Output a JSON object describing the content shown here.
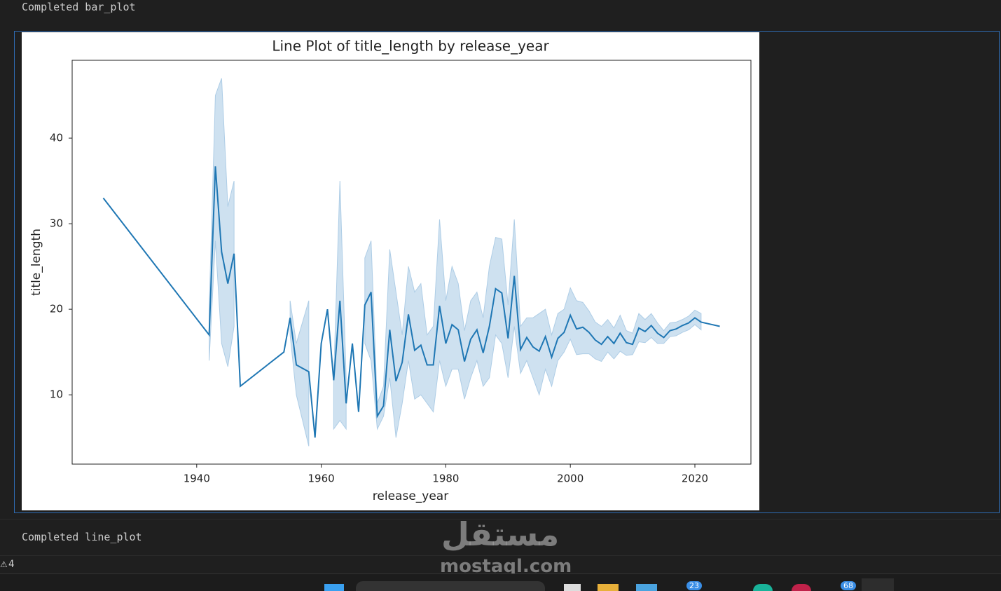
{
  "outputs": {
    "before": "Completed bar_plot",
    "after": "Completed line_plot"
  },
  "status": {
    "warnings": "4"
  },
  "watermark": {
    "arabic": "مستقل",
    "latin": "mostaql.com"
  },
  "taskbar": {
    "badges": [
      "23",
      "68"
    ]
  },
  "chart_data": {
    "type": "line",
    "title": "Line Plot of title_length by release_year",
    "x_label": "release_year",
    "y_label": "title_length",
    "x": [
      1925,
      1942,
      1943,
      1944,
      1945,
      1946,
      1947,
      1954,
      1955,
      1956,
      1958,
      1959,
      1960,
      1961,
      1962,
      1963,
      1964,
      1965,
      1966,
      1967,
      1968,
      1969,
      1970,
      1971,
      1972,
      1973,
      1974,
      1975,
      1976,
      1977,
      1978,
      1979,
      1980,
      1981,
      1982,
      1983,
      1984,
      1985,
      1986,
      1987,
      1988,
      1989,
      1990,
      1991,
      1992,
      1993,
      1994,
      1995,
      1996,
      1997,
      1998,
      1999,
      2000,
      2001,
      2002,
      2003,
      2004,
      2005,
      2006,
      2007,
      2008,
      2009,
      2010,
      2011,
      2012,
      2013,
      2014,
      2015,
      2016,
      2017,
      2018,
      2019,
      2020,
      2021,
      2024
    ],
    "values": [
      33,
      17,
      36.7,
      26.7,
      23,
      26.5,
      11,
      15,
      19,
      13.5,
      12.7,
      5,
      16,
      20,
      11.7,
      21,
      9,
      16,
      8,
      20.5,
      22,
      7.5,
      8.7,
      17.6,
      11.6,
      13.8,
      19.4,
      15.2,
      15.8,
      13.5,
      13.5,
      20.4,
      16,
      18.2,
      17.6,
      13.9,
      16.5,
      17.6,
      14.9,
      18,
      22.4,
      21.9,
      16.6,
      23.9,
      15.3,
      16.7,
      15.6,
      15.1,
      16.8,
      14.4,
      16.6,
      17.3,
      19.3,
      17.7,
      17.9,
      17.3,
      16.4,
      15.9,
      16.8,
      16,
      17.2,
      16.1,
      15.9,
      17.8,
      17.4,
      18.1,
      17.2,
      16.7,
      17.5,
      17.7,
      18.1,
      18.4,
      19,
      18.5,
      18
    ],
    "color": "#1f77b4",
    "band": {
      "lower": [
        null,
        14,
        28,
        16,
        13.3,
        18,
        null,
        null,
        17,
        10,
        4,
        null,
        null,
        null,
        6,
        7,
        6,
        null,
        null,
        16,
        14,
        6,
        7.5,
        12,
        5,
        9,
        14,
        9.5,
        10,
        9,
        8,
        14,
        11,
        13,
        13,
        9.5,
        12,
        14,
        11,
        12,
        17,
        16,
        12,
        18,
        12.5,
        14,
        12,
        10,
        13,
        11,
        14,
        15,
        16.5,
        14.7,
        14.8,
        14.8,
        14.2,
        13.9,
        15,
        14.2,
        15.1,
        14.6,
        14.7,
        16.2,
        16.1,
        16.7,
        16,
        16,
        16.8,
        16.9,
        17.3,
        17.6,
        18.2,
        17.6,
        null
      ],
      "upper": [
        null,
        20,
        45,
        47,
        32,
        35,
        null,
        null,
        21,
        16,
        21,
        null,
        null,
        null,
        12,
        35,
        12,
        null,
        null,
        26,
        28,
        9,
        11,
        27,
        22,
        17,
        25,
        22,
        23,
        17,
        18,
        30.5,
        21,
        25,
        23,
        17.5,
        21,
        22,
        19,
        25,
        28.4,
        28.2,
        20.5,
        30.5,
        18,
        19,
        19,
        19.5,
        20,
        17,
        19.5,
        20,
        22.5,
        21,
        20.8,
        19.8,
        18.5,
        18,
        18.8,
        17.8,
        19.3,
        17.5,
        17.2,
        19.5,
        18.8,
        19.5,
        18.4,
        17.5,
        18.4,
        18.5,
        18.8,
        19.2,
        19.9,
        19.5,
        null
      ]
    },
    "band_color": "#aecde6",
    "xlim": [
      1920,
      2029
    ],
    "ylim": [
      1.9,
      49.1
    ],
    "xticks": [
      1940,
      1960,
      1980,
      2000,
      2020
    ],
    "yticks": [
      10,
      20,
      30,
      40
    ],
    "grid": false
  }
}
